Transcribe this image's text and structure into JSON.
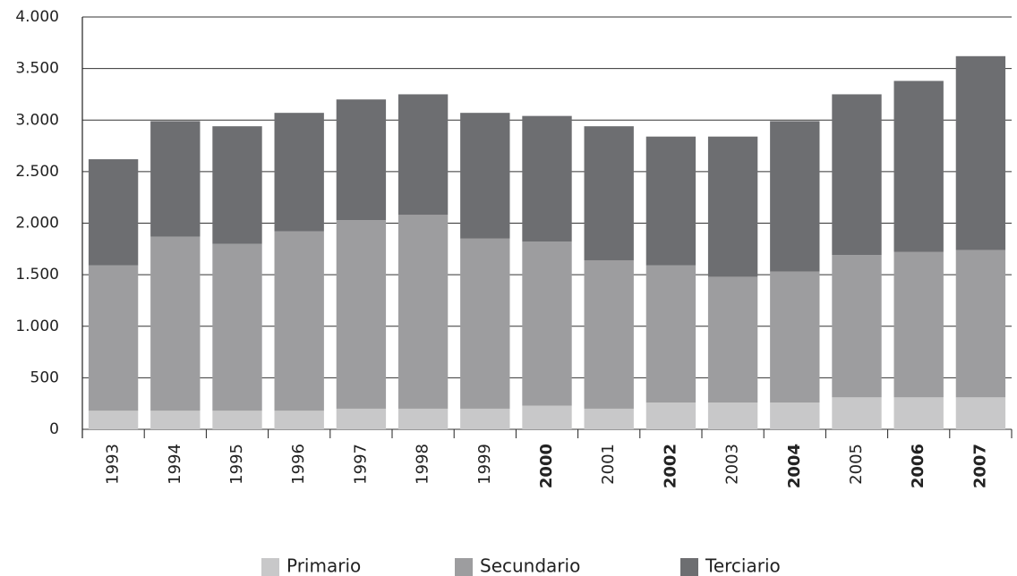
{
  "chart_data": {
    "type": "stacked_bar",
    "categories": [
      "1993",
      "1994",
      "1995",
      "1996",
      "1997",
      "1998",
      "1999",
      "2000",
      "2001",
      "2002",
      "2003",
      "2004",
      "2005",
      "2006",
      "2007"
    ],
    "series": [
      {
        "name": "Primario",
        "color": "#c8c8c9",
        "values": [
          180,
          180,
          180,
          180,
          200,
          200,
          200,
          230,
          200,
          260,
          260,
          260,
          310,
          310,
          310
        ]
      },
      {
        "name": "Secundario",
        "color": "#9d9d9f",
        "values": [
          1410,
          1690,
          1620,
          1740,
          1830,
          1880,
          1650,
          1590,
          1440,
          1330,
          1220,
          1270,
          1380,
          1410,
          1430
        ]
      },
      {
        "name": "Terciario",
        "color": "#6d6e71",
        "values": [
          1030,
          1120,
          1140,
          1150,
          1170,
          1170,
          1220,
          1220,
          1300,
          1250,
          1360,
          1460,
          1560,
          1660,
          1880
        ]
      }
    ],
    "ylim": [
      0,
      4000
    ],
    "yticks": [
      0,
      500,
      {
        "value": 1000,
        "label": "1.000"
      },
      {
        "value": 1500,
        "label": "1.500"
      },
      {
        "value": 2000,
        "label": "2.000"
      },
      {
        "value": 2500,
        "label": "2.500"
      },
      {
        "value": 3000,
        "label": "3.000"
      },
      {
        "value": 3500,
        "label": "3.500"
      },
      {
        "value": 4000,
        "label": "4.000"
      }
    ],
    "grid": true,
    "legend": "bottom"
  }
}
